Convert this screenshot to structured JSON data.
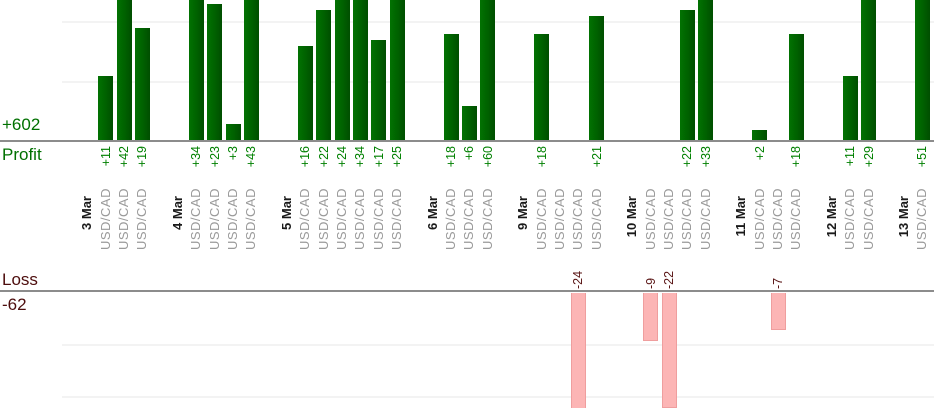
{
  "chart_data": {
    "type": "bar",
    "description": "Per-trade forex profit/loss report grouped by day; profits plotted upward above a baseline, losses plotted downward below a second baseline",
    "profit_axis": {
      "title": "Profit",
      "total_label": "+602",
      "total": 602,
      "gridline_step": 10
    },
    "loss_axis": {
      "title": "Loss",
      "total_label": "-62",
      "total": -62,
      "gridline_step": 10
    },
    "legend_position": "none",
    "grid": true,
    "groups": [
      {
        "date": "3 Mar",
        "trades": [
          {
            "pair": "USD/CAD",
            "value": 11,
            "label": "+11"
          },
          {
            "pair": "USD/CAD",
            "value": 42,
            "label": "+42"
          },
          {
            "pair": "USD/CAD",
            "value": 19,
            "label": "+19"
          }
        ]
      },
      {
        "date": "4 Mar",
        "trades": [
          {
            "pair": "USD/CAD",
            "value": 34,
            "label": "+34"
          },
          {
            "pair": "USD/CAD",
            "value": 23,
            "label": "+23"
          },
          {
            "pair": "USD/CAD",
            "value": 3,
            "label": "+3"
          },
          {
            "pair": "USD/CAD",
            "value": 43,
            "label": "+43"
          }
        ]
      },
      {
        "date": "5 Mar",
        "trades": [
          {
            "pair": "USD/CAD",
            "value": 16,
            "label": "+16"
          },
          {
            "pair": "USD/CAD",
            "value": 22,
            "label": "+22"
          },
          {
            "pair": "USD/CAD",
            "value": 24,
            "label": "+24"
          },
          {
            "pair": "USD/CAD",
            "value": 34,
            "label": "+34"
          },
          {
            "pair": "USD/CAD",
            "value": 17,
            "label": "+17"
          },
          {
            "pair": "USD/CAD",
            "value": 25,
            "label": "+25"
          }
        ]
      },
      {
        "date": "6 Mar",
        "trades": [
          {
            "pair": "USD/CAD",
            "value": 18,
            "label": "+18"
          },
          {
            "pair": "USD/CAD",
            "value": 6,
            "label": "+6"
          },
          {
            "pair": "USD/CAD",
            "value": 60,
            "label": "+60"
          }
        ]
      },
      {
        "date": "9 Mar",
        "trades": [
          {
            "pair": "USD/CAD",
            "value": 18,
            "label": "+18"
          },
          {
            "pair": "USD/CAD",
            "value": 0,
            "label": ""
          },
          {
            "pair": "USD/CAD",
            "value": -24,
            "label": "-24"
          },
          {
            "pair": "USD/CAD",
            "value": 21,
            "label": "+21"
          }
        ]
      },
      {
        "date": "10 Mar",
        "trades": [
          {
            "pair": "USD/CAD",
            "value": -9,
            "label": "-9"
          },
          {
            "pair": "USD/CAD",
            "value": -22,
            "label": "-22"
          },
          {
            "pair": "USD/CAD",
            "value": 22,
            "label": "+22"
          },
          {
            "pair": "USD/CAD",
            "value": 33,
            "label": "+33"
          }
        ]
      },
      {
        "date": "11 Mar",
        "trades": [
          {
            "pair": "USD/CAD",
            "value": 2,
            "label": "+2"
          },
          {
            "pair": "USD/CAD",
            "value": -7,
            "label": "-7"
          },
          {
            "pair": "USD/CAD",
            "value": 18,
            "label": "+18"
          }
        ]
      },
      {
        "date": "12 Mar",
        "trades": [
          {
            "pair": "USD/CAD",
            "value": 11,
            "label": "+11"
          },
          {
            "pair": "USD/CAD",
            "value": 29,
            "label": "+29"
          }
        ]
      },
      {
        "date": "13 Mar",
        "trades": [
          {
            "pair": "USD/CAD",
            "value": 51,
            "label": "+51"
          }
        ]
      }
    ],
    "colors": {
      "profit_bar": "#006400",
      "profit_text": "#008000",
      "summary_profit": "#007000",
      "loss_bar": "#fcb5b5",
      "loss_bar_border": "#ef9e9e",
      "loss_text": "#5a1515",
      "summary_loss": "#4d0d0d",
      "date_text": "#1a1a1a",
      "pair_text": "#9a9a9a",
      "axis_line": "#8c8c8c",
      "gridline": "#f3f3f3"
    }
  }
}
